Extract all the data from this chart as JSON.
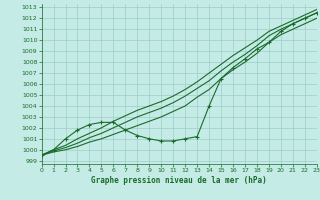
{
  "background_color": "#c5ebe6",
  "grid_color": "#9fcdc8",
  "line_color": "#1a6b2a",
  "xlabel": "Graphe pression niveau de la mer (hPa)",
  "xlim": [
    0,
    23
  ],
  "ylim": [
    998.7,
    1013.3
  ],
  "xticks": [
    0,
    1,
    2,
    3,
    4,
    5,
    6,
    7,
    8,
    9,
    10,
    11,
    12,
    13,
    14,
    15,
    16,
    17,
    18,
    19,
    20,
    21,
    22,
    23
  ],
  "yticks": [
    999,
    1000,
    1001,
    1002,
    1003,
    1004,
    1005,
    1006,
    1007,
    1008,
    1009,
    1010,
    1011,
    1012,
    1013
  ],
  "line_s1": [
    999.5,
    999.8,
    1000.0,
    1000.3,
    1000.7,
    1001.0,
    1001.4,
    1001.8,
    1002.2,
    1002.6,
    1003.0,
    1003.5,
    1004.0,
    1004.8,
    1005.5,
    1006.5,
    1007.3,
    1008.0,
    1008.8,
    1009.8,
    1010.5,
    1011.0,
    1011.5,
    1012.0
  ],
  "line_s2": [
    999.5,
    999.9,
    1000.2,
    1000.6,
    1001.1,
    1001.5,
    1002.0,
    1002.5,
    1003.0,
    1003.4,
    1003.8,
    1004.3,
    1004.9,
    1005.6,
    1006.3,
    1007.2,
    1008.0,
    1008.7,
    1009.5,
    1010.4,
    1011.0,
    1011.5,
    1012.0,
    1012.5
  ],
  "line_s3": [
    999.5,
    1000.0,
    1000.4,
    1001.0,
    1001.5,
    1002.0,
    1002.6,
    1003.1,
    1003.6,
    1004.0,
    1004.4,
    1004.9,
    1005.5,
    1006.2,
    1007.0,
    1007.8,
    1008.6,
    1009.3,
    1010.0,
    1010.8,
    1011.3,
    1011.8,
    1012.3,
    1012.8
  ],
  "line_wavy": [
    999.5,
    1000.0,
    1001.0,
    1001.8,
    1002.3,
    1002.5,
    1002.5,
    1001.8,
    1001.3,
    1001.0,
    1000.8,
    1000.8,
    1001.0,
    1001.2,
    1004.0,
    1006.5,
    1007.5,
    1008.3,
    1009.2,
    1009.8,
    1010.8,
    1011.5,
    1012.0,
    1012.5
  ]
}
